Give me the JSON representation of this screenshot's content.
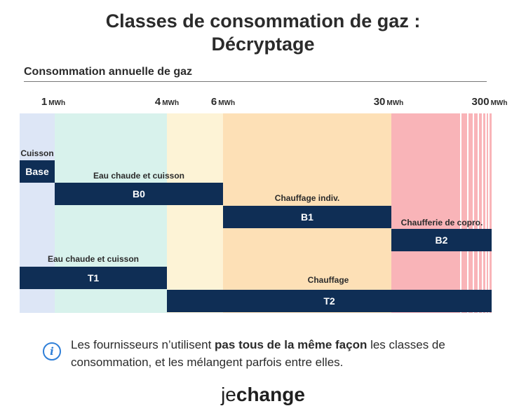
{
  "title_line1": "Classes de consommation de gaz :",
  "title_line2": "Décryptage",
  "subtitle": "Consommation annuelle de gaz",
  "unit": "MWh",
  "ticks": [
    "1",
    "4",
    "6",
    "30",
    "300"
  ],
  "band_colors": {
    "lightblue": "#dde6f6",
    "mint": "#d8f2ec",
    "cream": "#fdf3d6",
    "peach": "#fde0b6",
    "pink": "#f9b4b8"
  },
  "bar_color": "#0f2e55",
  "bars": {
    "base": "Base",
    "b0": "B0",
    "b1": "B1",
    "b2": "B2",
    "t1": "T1",
    "t2": "T2"
  },
  "labels": {
    "cuisson": "Cuisson",
    "b0": "Eau chaude et cuisson",
    "b1": "Chauffage indiv.",
    "b2": "Chaufferie de copro.",
    "t1": "Eau chaude et cuisson",
    "t2": "Chauffage"
  },
  "note": {
    "icon": "info-icon",
    "before": "Les fournisseurs n’utilisent ",
    "bold": "pas tous de la même façon",
    "after": " les classes de consommation, et les mélangent parfois entre elles."
  },
  "logo": {
    "je": "je",
    "change": "change"
  }
}
